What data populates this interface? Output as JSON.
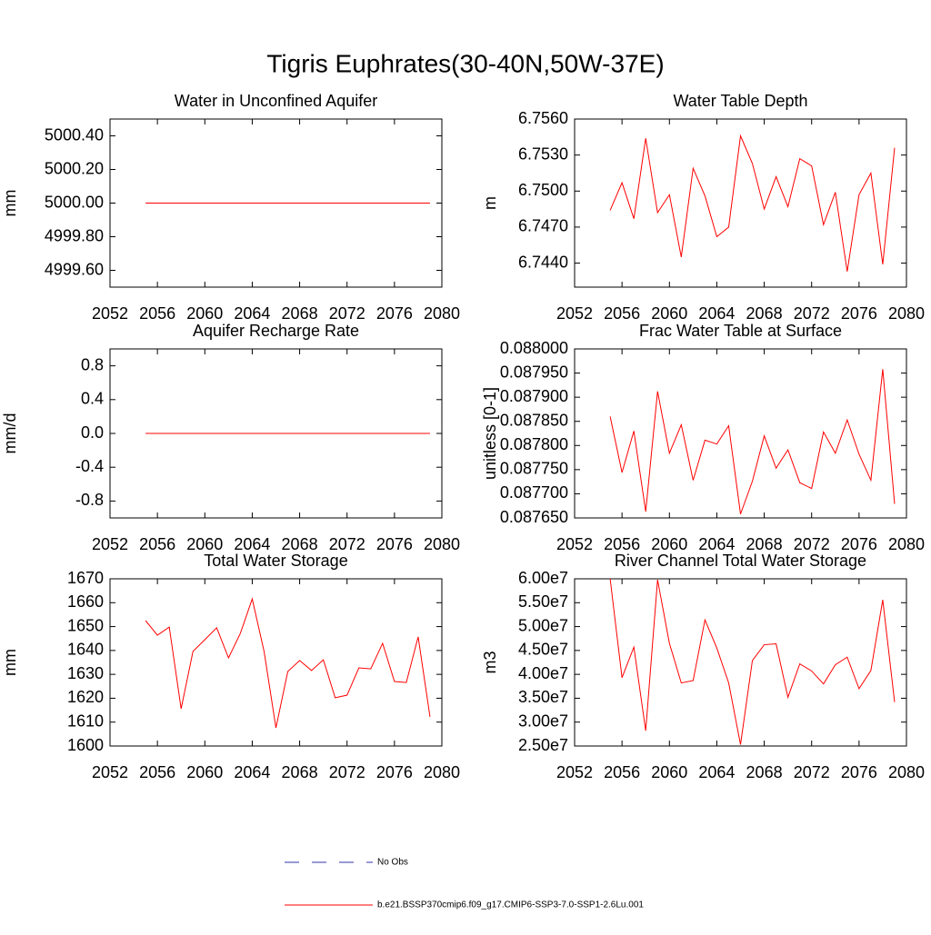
{
  "title": "Tigris Euphrates(30-40N,50W-37E)",
  "legend": [
    {
      "name": "No Obs",
      "color": "#3333aa",
      "dash": true
    },
    {
      "name": "b.e21.BSSP370cmip6.f09_g17.CMIP6-SSP3-7.0-SSP1-2.6Lu.001",
      "color": "#ff0000",
      "dash": false
    }
  ],
  "chart_data": [
    {
      "type": "line",
      "title": "Water in Unconfined Aquifer",
      "ylabel": "mm",
      "color": "#ff0000",
      "x": [
        2055,
        2056,
        2057,
        2058,
        2059,
        2060,
        2061,
        2062,
        2063,
        2064,
        2065,
        2066,
        2067,
        2068,
        2069,
        2070,
        2071,
        2072,
        2073,
        2074,
        2075,
        2076,
        2077,
        2078,
        2079
      ],
      "values": [
        5000,
        5000,
        5000,
        5000,
        5000,
        5000,
        5000,
        5000,
        5000,
        5000,
        5000,
        5000,
        5000,
        5000,
        5000,
        5000,
        5000,
        5000,
        5000,
        5000,
        5000,
        5000,
        5000,
        5000,
        5000
      ],
      "xlim": [
        2052,
        2080
      ],
      "xticks": [
        2052,
        2056,
        2060,
        2064,
        2068,
        2072,
        2076,
        2080
      ],
      "ylim": [
        4999.5,
        5000.5
      ],
      "yticks": [
        {
          "value": 4999.6,
          "label": "4999.60"
        },
        {
          "value": 4999.8,
          "label": "4999.80"
        },
        {
          "value": 5000,
          "label": "5000.00"
        },
        {
          "value": 5000.2,
          "label": "5000.20"
        },
        {
          "value": 5000.4,
          "label": "5000.40"
        }
      ]
    },
    {
      "type": "line",
      "title": "Water Table Depth",
      "ylabel": "m",
      "color": "#ff0000",
      "x": [
        2055,
        2056,
        2057,
        2058,
        2059,
        2060,
        2061,
        2062,
        2063,
        2064,
        2065,
        2066,
        2067,
        2068,
        2069,
        2070,
        2071,
        2072,
        2073,
        2074,
        2075,
        2076,
        2077,
        2078,
        2079
      ],
      "values": [
        6.7484,
        6.7507,
        6.7477,
        6.7544,
        6.7482,
        6.7497,
        6.7445,
        6.7519,
        6.7496,
        6.7462,
        6.747,
        6.7546,
        6.7523,
        6.7485,
        6.7512,
        6.7487,
        6.7527,
        6.7521,
        6.7472,
        6.7499,
        6.7433,
        6.7497,
        6.7515,
        6.7439,
        6.7536
      ],
      "xlim": [
        2052,
        2080
      ],
      "xticks": [
        2052,
        2056,
        2060,
        2064,
        2068,
        2072,
        2076,
        2080
      ],
      "ylim": [
        6.742,
        6.756
      ],
      "yticks": [
        {
          "value": 6.744,
          "label": "6.7440"
        },
        {
          "value": 6.747,
          "label": "6.7470"
        },
        {
          "value": 6.75,
          "label": "6.7500"
        },
        {
          "value": 6.753,
          "label": "6.7530"
        },
        {
          "value": 6.756,
          "label": "6.7560"
        }
      ]
    },
    {
      "type": "line",
      "title": "Aquifer Recharge Rate",
      "ylabel": "mm/d",
      "color": "#ff0000",
      "x": [
        2055,
        2056,
        2057,
        2058,
        2059,
        2060,
        2061,
        2062,
        2063,
        2064,
        2065,
        2066,
        2067,
        2068,
        2069,
        2070,
        2071,
        2072,
        2073,
        2074,
        2075,
        2076,
        2077,
        2078,
        2079
      ],
      "values": [
        0,
        0,
        0,
        0,
        0,
        0,
        0,
        0,
        0,
        0,
        0,
        0,
        0,
        0,
        0,
        0,
        0,
        0,
        0,
        0,
        0,
        0,
        0,
        0,
        0
      ],
      "xlim": [
        2052,
        2080
      ],
      "xticks": [
        2052,
        2056,
        2060,
        2064,
        2068,
        2072,
        2076,
        2080
      ],
      "ylim": [
        -1,
        1
      ],
      "yticks": [
        -0.8,
        -0.4,
        {
          "value": 0,
          "label": "0.0"
        },
        0.4,
        0.8
      ]
    },
    {
      "type": "line",
      "title": "Frac Water Table at Surface",
      "ylabel": "unitless [0-1]",
      "color": "#ff0000",
      "x": [
        2055,
        2056,
        2057,
        2058,
        2059,
        2060,
        2061,
        2062,
        2063,
        2064,
        2065,
        2066,
        2067,
        2068,
        2069,
        2070,
        2071,
        2072,
        2073,
        2074,
        2075,
        2076,
        2077,
        2078,
        2079
      ],
      "values": [
        0.08786,
        0.087744,
        0.08783,
        0.087663,
        0.087912,
        0.087784,
        0.087843,
        0.087728,
        0.087811,
        0.087803,
        0.087841,
        0.087658,
        0.087726,
        0.08782,
        0.087753,
        0.087791,
        0.087723,
        0.087711,
        0.087828,
        0.087784,
        0.087853,
        0.087782,
        0.087728,
        0.087958,
        0.087679
      ],
      "xlim": [
        2052,
        2080
      ],
      "xticks": [
        2052,
        2056,
        2060,
        2064,
        2068,
        2072,
        2076,
        2080
      ],
      "ylim": [
        0.08765,
        0.088
      ],
      "yticks": [
        {
          "value": 0.08765,
          "label": "0.087650"
        },
        {
          "value": 0.0877,
          "label": "0.087700"
        },
        {
          "value": 0.08775,
          "label": "0.087750"
        },
        {
          "value": 0.0878,
          "label": "0.087800"
        },
        {
          "value": 0.08785,
          "label": "0.087850"
        },
        {
          "value": 0.0879,
          "label": "0.087900"
        },
        {
          "value": 0.08795,
          "label": "0.087950"
        },
        {
          "value": 0.088,
          "label": "0.088000"
        }
      ]
    },
    {
      "type": "line",
      "title": "Total Water Storage",
      "ylabel": "mm",
      "color": "#ff0000",
      "x": [
        2055,
        2056,
        2057,
        2058,
        2059,
        2060,
        2061,
        2062,
        2063,
        2064,
        2065,
        2066,
        2067,
        2068,
        2069,
        2070,
        2071,
        2072,
        2073,
        2074,
        2075,
        2076,
        2077,
        2078,
        2079
      ],
      "values": [
        1652.5,
        1646.4,
        1649.8,
        1615.6,
        1639.6,
        1644.5,
        1649.5,
        1636.9,
        1647.2,
        1661.6,
        1639.6,
        1607.6,
        1631.2,
        1635.8,
        1631.6,
        1636.1,
        1620.2,
        1621.3,
        1632.7,
        1632.3,
        1643,
        1627,
        1626.6,
        1645.7,
        1612.2
      ],
      "xlim": [
        2052,
        2080
      ],
      "xticks": [
        2052,
        2056,
        2060,
        2064,
        2068,
        2072,
        2076,
        2080
      ],
      "ylim": [
        1600,
        1670
      ],
      "yticks": [
        1600,
        1610,
        1620,
        1630,
        1640,
        1650,
        1660,
        1670
      ]
    },
    {
      "type": "line",
      "title": "River Channel Total Water Storage",
      "ylabel": "m3",
      "color": "#ff0000",
      "x": [
        2055,
        2056,
        2057,
        2058,
        2059,
        2060,
        2061,
        2062,
        2063,
        2064,
        2065,
        2066,
        2067,
        2068,
        2069,
        2070,
        2071,
        2072,
        2073,
        2074,
        2075,
        2076,
        2077,
        2078,
        2079
      ],
      "values": [
        60000000,
        39300000,
        45700000,
        28200000,
        59800000,
        46500000,
        38200000,
        38700000,
        51400000,
        45500000,
        38200000,
        25300000,
        42900000,
        46200000,
        46400000,
        35200000,
        42200000,
        40700000,
        38000000,
        42000000,
        43600000,
        37000000,
        40800000,
        55600000,
        34200000
      ],
      "xlim": [
        2052,
        2080
      ],
      "xticks": [
        2052,
        2056,
        2060,
        2064,
        2068,
        2072,
        2076,
        2080
      ],
      "ylim": [
        25000000,
        60000000
      ],
      "yticks": [
        {
          "value": 25000000,
          "label": "2.50e7"
        },
        {
          "value": 30000000,
          "label": "3.00e7"
        },
        {
          "value": 35000000,
          "label": "3.50e7"
        },
        {
          "value": 40000000,
          "label": "4.00e7"
        },
        {
          "value": 45000000,
          "label": "4.50e7"
        },
        {
          "value": 50000000,
          "label": "5.00e7"
        },
        {
          "value": 55000000,
          "label": "5.50e7"
        },
        {
          "value": 60000000,
          "label": "6.00e7"
        }
      ]
    }
  ]
}
